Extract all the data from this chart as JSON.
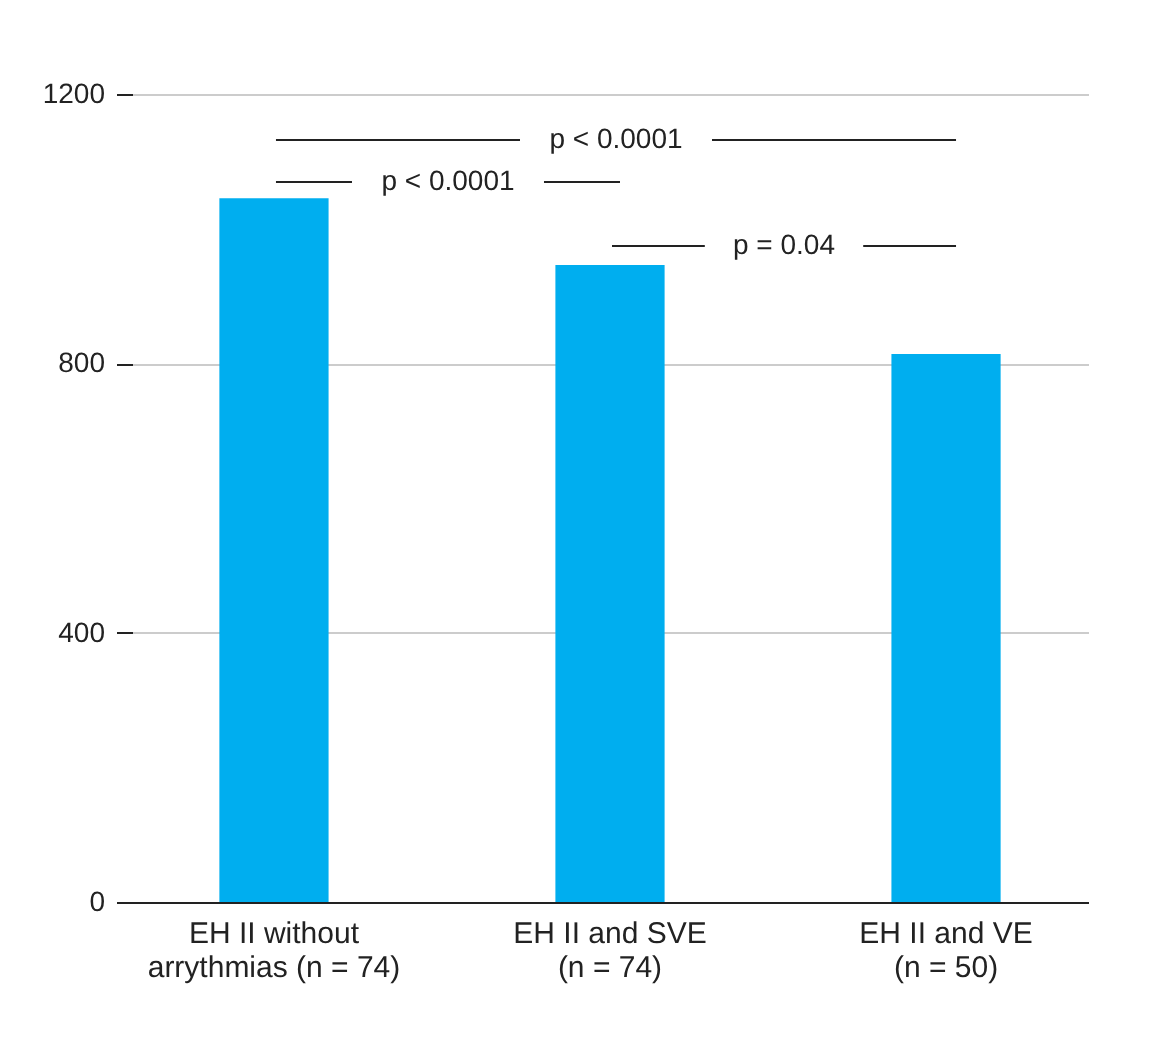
{
  "chart_data": {
    "type": "bar",
    "categories": [
      "EH II without\narrythmias (n = 74)",
      "EH II and SVE\n(n = 74)",
      "EH II and VE\n(n = 50)"
    ],
    "values": [
      1045,
      946,
      814
    ],
    "color": "#00aeef",
    "ylim": [
      0,
      1200
    ],
    "yticks": [
      0,
      400,
      800,
      1200
    ],
    "grid": "y",
    "annotations": [
      "p < 0.0001",
      "p < 0.0001",
      "p = 0.04"
    ]
  }
}
